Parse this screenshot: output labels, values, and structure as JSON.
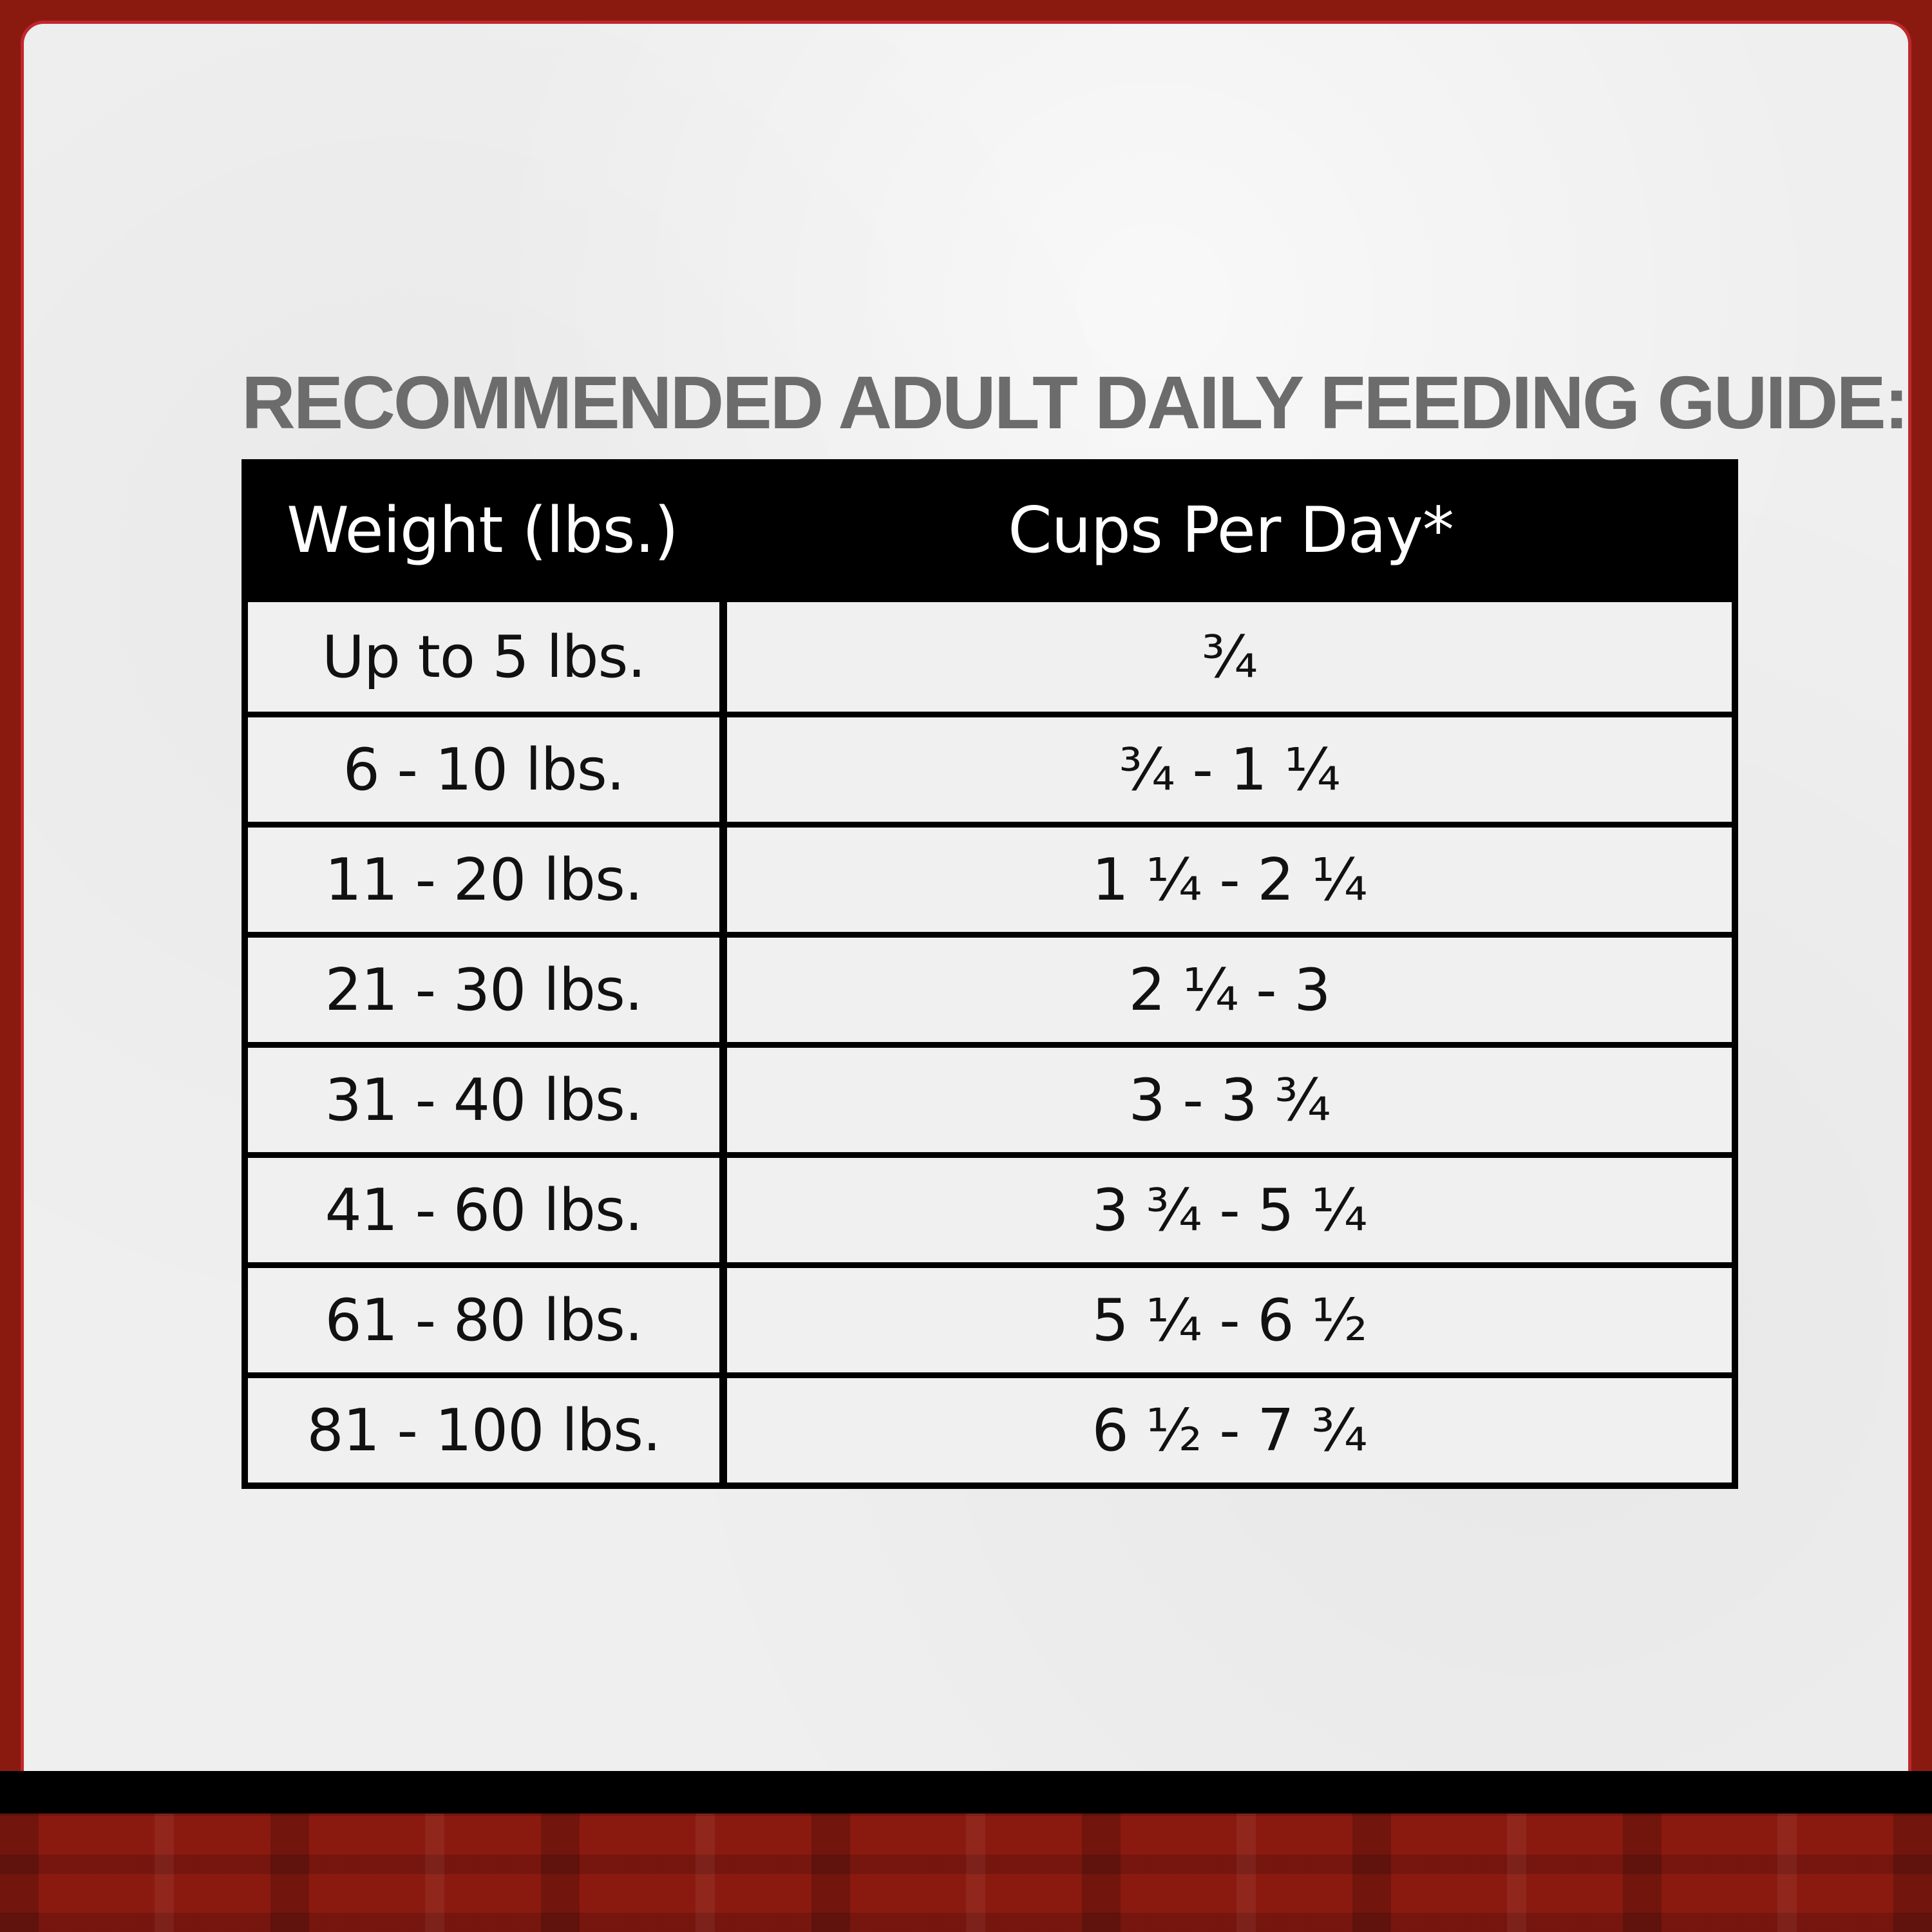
{
  "title": "RECOMMENDED ADULT DAILY FEEDING GUIDE:",
  "table": {
    "headers": [
      "Weight (lbs.)",
      "Cups Per Day*"
    ],
    "rows": [
      [
        "Up to 5 lbs.",
        "¾"
      ],
      [
        "6 - 10 lbs.",
        "¾ - 1 ¼"
      ],
      [
        "11 - 20 lbs.",
        "1 ¼ - 2 ¼"
      ],
      [
        "21 - 30 lbs.",
        "2 ¼ - 3"
      ],
      [
        "31 - 40 lbs.",
        "3 - 3 ¾"
      ],
      [
        "41 - 60 lbs.",
        "3 ¾ - 5 ¼"
      ],
      [
        "61 - 80 lbs.",
        "5 ¼ - 6 ½"
      ],
      [
        "81 - 100 lbs.",
        "6 ½ - 7 ¾"
      ]
    ]
  },
  "colors": {
    "frame_border": "#c0272d",
    "title_text": "#6c6c6c",
    "header_bg": "#000000",
    "bottom_band": "#8a1a10"
  }
}
